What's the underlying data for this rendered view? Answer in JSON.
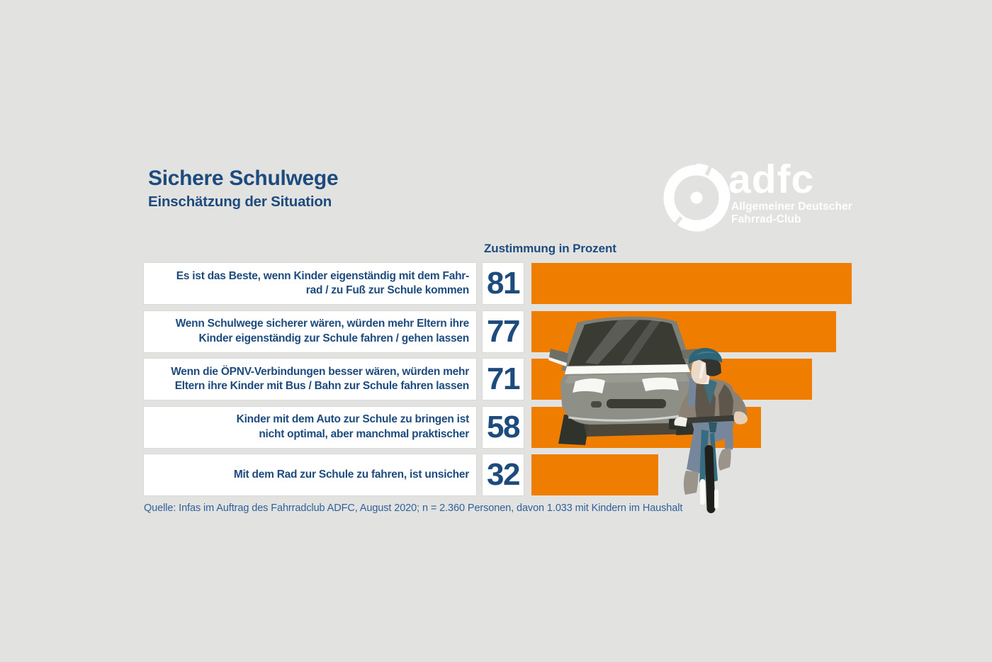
{
  "header": {
    "title": "Sichere Schulwege",
    "subtitle": "Einschätzung der Situation"
  },
  "logo": {
    "icon": "adfc-wheel-icon",
    "brand": "adfc",
    "subline1": "Allgemeiner Deutscher",
    "subline2": "Fahrrad-Club"
  },
  "table": {
    "value_header": "Zustimmung in Prozent",
    "rows": [
      {
        "lines": [
          "Es ist das Beste, wenn Kinder eigenständig mit dem Fahr-",
          "rad / zu Fuß zur Schule kommen"
        ],
        "value": "81"
      },
      {
        "lines": [
          "Wenn Schulwege sicherer wären, würden mehr Eltern ihre",
          "Kinder eigenständig zur Schule fahren / gehen lassen"
        ],
        "value": "77"
      },
      {
        "lines": [
          "Wenn die ÖPNV-Verbindungen besser wären, würden mehr",
          "Eltern ihre Kinder mit Bus / Bahn zur Schule fahren lassen"
        ],
        "value": "71"
      },
      {
        "lines": [
          "Kinder mit dem Auto zur Schule zu bringen ist",
          "nicht optimal, aber manchmal praktischer"
        ],
        "value": "58"
      },
      {
        "lines": [
          "Mit dem Rad zur Schule zu fahren, ist unsicher"
        ],
        "value": "32"
      }
    ]
  },
  "source": "Quelle: Infas im Auftrag des Fahrradclub ADFC, August 2020; n = 2.360 Personen, davon 1.033 mit Kindern im Haushalt",
  "illustration": {
    "name": "car-and-child-cyclist-illustration"
  },
  "colors": {
    "background": "#e2e2e1",
    "bar_orange": "#ee7d00",
    "heading_blue": "#1e4b7e",
    "source_blue": "#31609b",
    "box_white": "#ffffff",
    "logo_white": "#ffffff"
  },
  "chart_data": {
    "type": "bar",
    "orientation": "horizontal",
    "title": "Sichere Schulwege",
    "subtitle": "Einschätzung der Situation",
    "value_axis_label": "Zustimmung in Prozent",
    "unit": "percent",
    "categories": [
      "Es ist das Beste, wenn Kinder eigenständig mit dem Fahrrad / zu Fuß zur Schule kommen",
      "Wenn Schulwege sicherer wären, würden mehr Eltern ihre Kinder eigenständig zur Schule fahren / gehen lassen",
      "Wenn die ÖPNV-Verbindungen besser wären, würden mehr Eltern ihre Kinder mit Bus / Bahn zur Schule fahren lassen",
      "Kinder mit dem Auto zur Schule zu bringen ist nicht optimal, aber manchmal praktischer",
      "Mit dem Rad zur Schule zu fahren, ist unsicher"
    ],
    "values": [
      81,
      77,
      71,
      58,
      32
    ],
    "xlim": [
      0,
      100
    ],
    "bar_color": "#ee7d00",
    "grid": false,
    "legend": "none",
    "source": "Quelle: Infas im Auftrag des Fahrradclub ADFC, August 2020; n = 2.360 Personen, davon 1.033 mit Kindern im Haushalt"
  }
}
